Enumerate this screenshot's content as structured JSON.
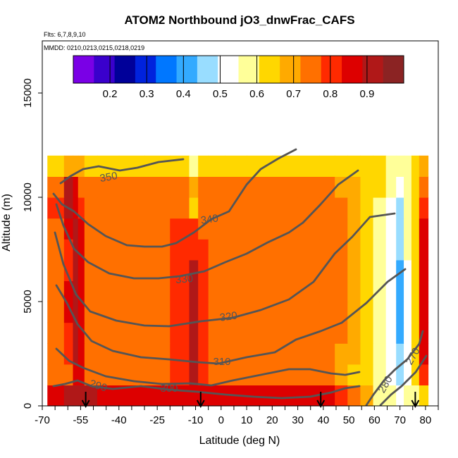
{
  "chart_data": {
    "type": "heatmap",
    "title": "ATOM2 Northbound jO3_dnwFrac_CAFS",
    "subtitle_flights": "Flts: 6,7,8,9,10",
    "subtitle_dates": "MMDD: 0210,0213,0215,0218,0219",
    "xlabel": "Latitude (deg N)",
    "ylabel": "Altitude (m)",
    "xlim": [
      -70,
      85
    ],
    "ylim": [
      0,
      17500
    ],
    "x_ticks": [
      -70,
      -55,
      -40,
      -25,
      -10,
      0,
      10,
      20,
      30,
      40,
      50,
      60,
      70,
      80
    ],
    "x_tick_labels": [
      "-70",
      "-55",
      "-40",
      "-25",
      "-10",
      "0",
      "10",
      "20",
      "30",
      "40",
      "50",
      "60",
      "70",
      "80"
    ],
    "y_ticks": [
      0,
      5000,
      10000,
      15000
    ],
    "y_tick_labels": [
      "0",
      "5000",
      "10000",
      "15000"
    ],
    "colorbar": {
      "range": [
        0.1,
        1.0
      ],
      "ticks": [
        0.2,
        0.3,
        0.4,
        0.5,
        0.6,
        0.7,
        0.8,
        0.9
      ],
      "tick_labels": [
        "0.2",
        "0.3",
        "0.4",
        "0.5",
        "0.6",
        "0.7",
        "0.8",
        "0.9"
      ],
      "colors": [
        "#7a00e6",
        "#3a00cc",
        "#000099",
        "#0022dd",
        "#0077ff",
        "#33aaff",
        "#99ddff",
        "#ffffff",
        "#ffff99",
        "#ffd700",
        "#ffaa00",
        "#ff7000",
        "#ff2a00",
        "#dd0000",
        "#b01818",
        "#8b2323"
      ]
    },
    "series": [
      {
        "name": "dnwFrac",
        "x": [
          -64,
          -59,
          -57,
          -55,
          -52,
          -45,
          -35,
          -25,
          -15,
          -10,
          -8,
          -2,
          5,
          15,
          25,
          35,
          42,
          47,
          52,
          57,
          62,
          67,
          70,
          73,
          76,
          79
        ],
        "y_levels": [
          500,
          1500,
          2500,
          3500,
          4500,
          5500,
          6500,
          7500,
          8500,
          9500,
          10500,
          11500
        ],
        "values": [
          [
            0.88,
            0.9,
            0.91,
            0.91,
            0.9,
            0.86,
            0.84,
            0.86,
            0.88,
            0.88,
            0.87,
            0.85,
            0.86,
            0.87,
            0.87,
            0.86,
            0.84,
            0.8,
            0.76,
            0.7,
            0.6,
            0.55,
            0.5,
            0.55,
            0.6,
            0.62
          ],
          [
            0.72,
            0.76,
            0.88,
            0.86,
            0.76,
            0.74,
            0.74,
            0.76,
            0.8,
            0.92,
            0.78,
            0.76,
            0.75,
            0.76,
            0.75,
            0.74,
            0.72,
            0.68,
            0.64,
            0.62,
            0.58,
            0.52,
            0.46,
            0.54,
            0.66,
            0.82
          ],
          [
            0.74,
            0.78,
            0.92,
            0.87,
            0.77,
            0.76,
            0.75,
            0.76,
            0.8,
            0.92,
            0.79,
            0.76,
            0.75,
            0.76,
            0.75,
            0.74,
            0.73,
            0.7,
            0.67,
            0.64,
            0.58,
            0.5,
            0.44,
            0.52,
            0.66,
            0.84
          ],
          [
            0.74,
            0.82,
            0.92,
            0.86,
            0.77,
            0.76,
            0.75,
            0.76,
            0.8,
            0.93,
            0.78,
            0.76,
            0.75,
            0.76,
            0.75,
            0.74,
            0.73,
            0.72,
            0.7,
            0.66,
            0.6,
            0.5,
            0.42,
            0.52,
            0.66,
            0.85
          ],
          [
            0.74,
            0.84,
            0.93,
            0.87,
            0.77,
            0.76,
            0.75,
            0.76,
            0.8,
            0.93,
            0.78,
            0.76,
            0.75,
            0.76,
            0.75,
            0.74,
            0.73,
            0.72,
            0.7,
            0.66,
            0.6,
            0.5,
            0.42,
            0.54,
            0.66,
            0.86
          ],
          [
            0.73,
            0.84,
            0.92,
            0.86,
            0.77,
            0.76,
            0.75,
            0.76,
            0.8,
            0.92,
            0.78,
            0.76,
            0.75,
            0.76,
            0.75,
            0.74,
            0.73,
            0.72,
            0.7,
            0.66,
            0.6,
            0.5,
            0.42,
            0.54,
            0.66,
            0.86
          ],
          [
            0.72,
            0.82,
            0.91,
            0.85,
            0.77,
            0.76,
            0.75,
            0.76,
            0.79,
            0.91,
            0.78,
            0.76,
            0.75,
            0.76,
            0.75,
            0.74,
            0.73,
            0.72,
            0.7,
            0.66,
            0.6,
            0.5,
            0.42,
            0.54,
            0.66,
            0.86
          ],
          [
            0.72,
            0.82,
            0.9,
            0.86,
            0.77,
            0.76,
            0.75,
            0.76,
            0.79,
            0.82,
            0.78,
            0.76,
            0.75,
            0.76,
            0.75,
            0.74,
            0.73,
            0.72,
            0.7,
            0.66,
            0.6,
            0.5,
            0.44,
            0.55,
            0.66,
            0.84
          ],
          [
            0.74,
            0.86,
            0.9,
            0.84,
            0.76,
            0.75,
            0.75,
            0.75,
            0.78,
            0.8,
            0.77,
            0.76,
            0.75,
            0.75,
            0.75,
            0.74,
            0.73,
            0.72,
            0.7,
            0.66,
            0.6,
            0.5,
            0.46,
            0.55,
            0.66,
            0.84
          ],
          [
            0.8,
            0.9,
            0.86,
            0.8,
            0.74,
            0.74,
            0.74,
            0.74,
            0.76,
            0.62,
            0.76,
            0.75,
            0.74,
            0.74,
            0.74,
            0.74,
            0.73,
            0.72,
            0.7,
            0.66,
            0.6,
            0.52,
            0.48,
            0.56,
            0.66,
            0.8
          ],
          [
            0.76,
            0.9,
            0.84,
            0.76,
            0.72,
            0.72,
            0.72,
            0.72,
            0.74,
            0.7,
            0.72,
            0.72,
            0.72,
            0.72,
            0.72,
            0.72,
            0.72,
            0.7,
            0.68,
            0.66,
            0.62,
            0.55,
            0.5,
            0.55,
            0.64,
            0.76
          ],
          [
            0.62,
            0.7,
            0.7,
            0.68,
            0.66,
            0.66,
            0.66,
            0.66,
            0.64,
            0.6,
            0.62,
            0.64,
            0.66,
            0.66,
            0.66,
            0.66,
            0.66,
            0.66,
            0.66,
            0.64,
            0.62,
            0.6,
            0.58,
            0.6,
            0.64,
            0.68
          ]
        ]
      }
    ],
    "contours": [
      {
        "level": "290",
        "label": "290"
      },
      {
        "level": "300",
        "label": "300"
      },
      {
        "level": "310",
        "label": "310"
      },
      {
        "level": "320",
        "label": "320"
      },
      {
        "level": "330",
        "label": "330"
      },
      {
        "level": "340",
        "label": "340"
      },
      {
        "level": "350",
        "label": "350"
      },
      {
        "level": "280",
        "label": "280"
      },
      {
        "level": "270",
        "label": "270"
      }
    ],
    "flight_markers_lat": [
      -53,
      -8,
      39,
      76
    ]
  }
}
